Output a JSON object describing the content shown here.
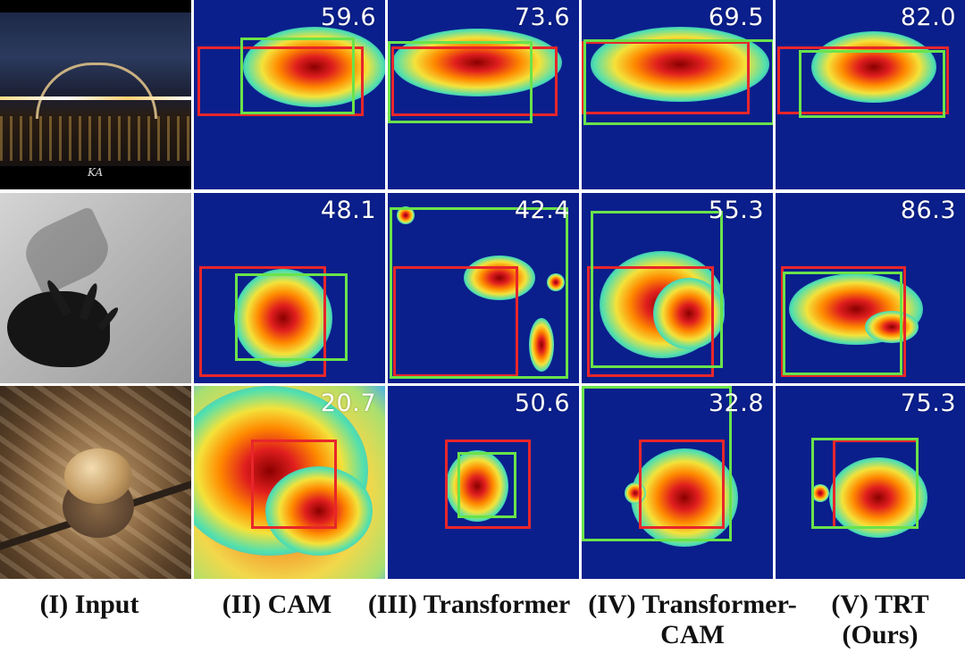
{
  "colors": {
    "ground_truth_box": "#e8262a",
    "predicted_box": "#6ae34a",
    "heatmap_background": "#0a1f8c",
    "score_text": "#ffffff"
  },
  "columns": [
    {
      "caption": "(I) Input"
    },
    {
      "caption": "(II) CAM"
    },
    {
      "caption": "(III) Transformer"
    },
    {
      "caption": "(IV) Transformer-\nCAM"
    },
    {
      "caption": "(V) TRT\n(Ours)"
    }
  ],
  "rows": [
    {
      "subject": "bridge",
      "input_icon": "harbour-bridge-night-photo",
      "scores": [
        "59.6",
        "73.6",
        "69.5",
        "82.0"
      ]
    },
    {
      "subject": "triceratops",
      "input_icon": "triceratops-head-photo",
      "scores": [
        "48.1",
        "42.4",
        "55.3",
        "86.3"
      ]
    },
    {
      "subject": "acorn",
      "input_icon": "acorn-on-branch-photo",
      "scores": [
        "20.7",
        "50.6",
        "32.8",
        "75.3"
      ]
    }
  ],
  "watermark": "KA"
}
